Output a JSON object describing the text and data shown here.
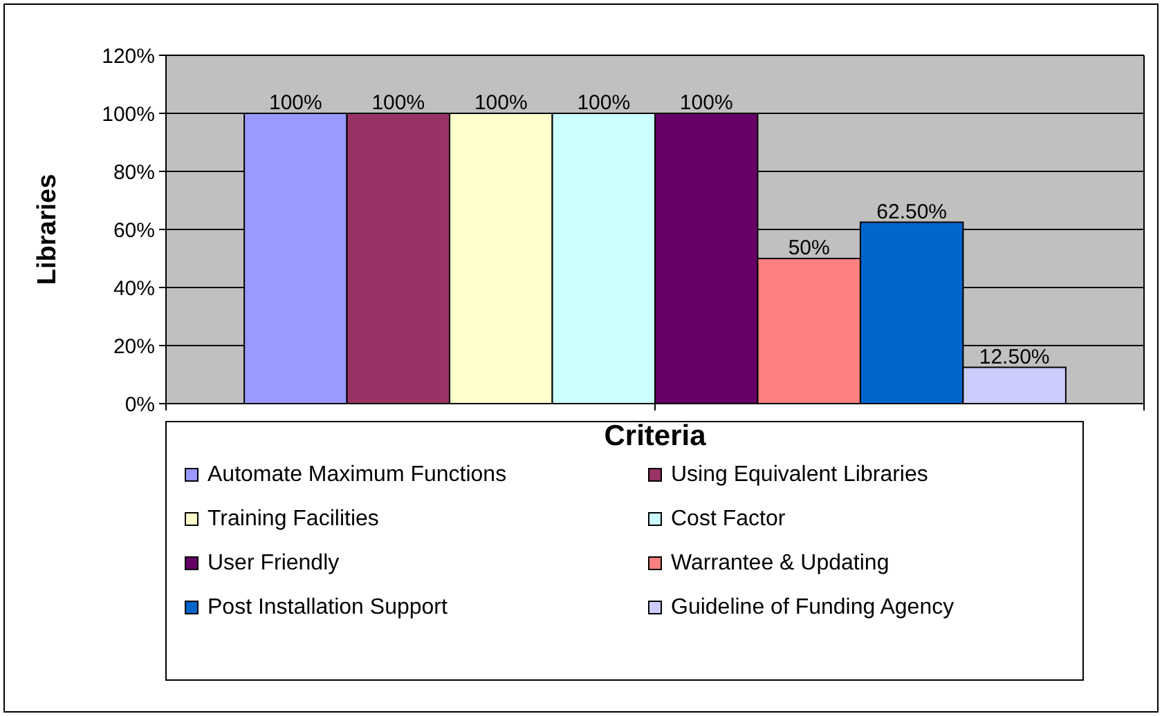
{
  "chart_data": {
    "type": "bar",
    "xlabel": "Criteria",
    "ylabel": "Libraries",
    "categories": [
      null
    ],
    "ylim": [
      0,
      120
    ],
    "yticks": [
      {
        "value": 0,
        "label": "0%"
      },
      {
        "value": 20,
        "label": "20%"
      },
      {
        "value": 40,
        "label": "40%"
      },
      {
        "value": 60,
        "label": "60%"
      },
      {
        "value": 80,
        "label": "80%"
      },
      {
        "value": 100,
        "label": "100%"
      },
      {
        "value": 120,
        "label": "120%"
      }
    ],
    "grid": "y",
    "legend": "bottom",
    "series": [
      {
        "name": "Automate Maximum Functions",
        "color": "#9999ff",
        "values": [
          100
        ],
        "value_labels": [
          "100%"
        ]
      },
      {
        "name": "Using Equivalent Libraries",
        "color": "#993366",
        "values": [
          100
        ],
        "value_labels": [
          "100%"
        ]
      },
      {
        "name": "Training Facilities",
        "color": "#ffffcc",
        "values": [
          100
        ],
        "value_labels": [
          "100%"
        ]
      },
      {
        "name": "Cost Factor",
        "color": "#ccffff",
        "values": [
          100
        ],
        "value_labels": [
          "100%"
        ]
      },
      {
        "name": "User Friendly",
        "color": "#660066",
        "values": [
          100
        ],
        "value_labels": [
          "100%"
        ]
      },
      {
        "name": "Warrantee & Updating",
        "color": "#ff8080",
        "values": [
          50
        ],
        "value_labels": [
          "50%"
        ]
      },
      {
        "name": "Post Installation Support",
        "color": "#0066cc",
        "values": [
          62.5
        ],
        "value_labels": [
          "62.50%"
        ]
      },
      {
        "name": "Guideline of Funding Agency",
        "color": "#ccccff",
        "values": [
          12.5
        ],
        "value_labels": [
          "12.50%"
        ]
      }
    ]
  }
}
